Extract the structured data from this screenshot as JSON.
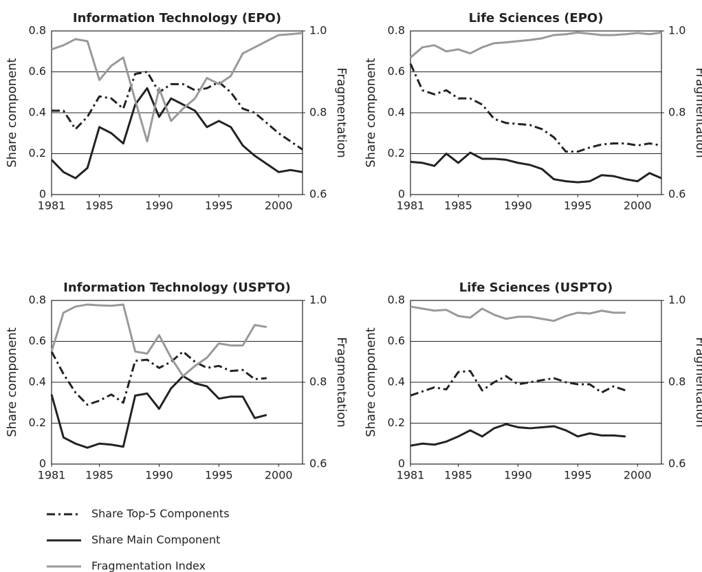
{
  "chart_data": [
    {
      "type": "line",
      "title": "Information Technology (EPO)",
      "ylabel": "Share component",
      "y2label": "Fragmentation",
      "x": [
        1981,
        1982,
        1983,
        1984,
        1985,
        1986,
        1987,
        1988,
        1989,
        1990,
        1991,
        1992,
        1993,
        1994,
        1995,
        1996,
        1997,
        1998,
        1999,
        2000,
        2001,
        2002
      ],
      "series": [
        {
          "name": "Share Top-5 Components",
          "color": "#222222",
          "linestyle": "dashdot",
          "values": [
            0.41,
            0.41,
            0.32,
            0.38,
            0.48,
            0.47,
            0.42,
            0.59,
            0.6,
            0.5,
            0.54,
            0.54,
            0.51,
            0.52,
            0.55,
            0.5,
            0.42,
            0.4,
            0.35,
            0.3,
            0.26,
            0.22
          ]
        },
        {
          "name": "Share Main Component",
          "color": "#222222",
          "linestyle": "solid",
          "values": [
            0.17,
            0.11,
            0.08,
            0.13,
            0.33,
            0.3,
            0.25,
            0.44,
            0.52,
            0.38,
            0.47,
            0.44,
            0.41,
            0.33,
            0.36,
            0.33,
            0.24,
            0.19,
            0.15,
            0.11,
            0.12,
            0.11
          ]
        },
        {
          "name": "Fragmentation Index",
          "color": "#999999",
          "linestyle": "solid",
          "axis": "y2",
          "values": [
            0.955,
            0.965,
            0.98,
            0.975,
            0.88,
            0.915,
            0.935,
            0.83,
            0.73,
            0.86,
            0.78,
            0.81,
            0.835,
            0.885,
            0.87,
            0.89,
            0.945,
            0.96,
            0.975,
            0.99,
            0.992,
            0.995
          ]
        }
      ],
      "xlim": [
        1981,
        2002
      ],
      "xticks": [
        1981,
        1985,
        1990,
        1995,
        2000
      ],
      "ylim": [
        0,
        0.8
      ],
      "yticks": [
        0,
        0.2,
        0.4,
        0.6,
        0.8
      ],
      "y2lim": [
        0.6,
        1.0
      ],
      "y2ticks": [
        0.6,
        0.8,
        {
          "value": 1.0,
          "label": "1.0"
        }
      ],
      "grid": true
    },
    {
      "type": "line",
      "title": "Life Sciences (EPO)",
      "ylabel": "Share component",
      "y2label": "Fragmentation",
      "x": [
        1981,
        1982,
        1983,
        1984,
        1985,
        1986,
        1987,
        1988,
        1989,
        1990,
        1991,
        1992,
        1993,
        1994,
        1995,
        1996,
        1997,
        1998,
        1999,
        2000,
        2001,
        2002
      ],
      "series": [
        {
          "color": "#222222",
          "linestyle": "dashdot",
          "values": [
            0.64,
            0.51,
            0.49,
            0.51,
            0.47,
            0.47,
            0.44,
            0.37,
            0.35,
            0.345,
            0.34,
            0.32,
            0.28,
            0.21,
            0.21,
            0.23,
            0.245,
            0.25,
            0.25,
            0.24,
            0.25,
            0.24
          ]
        },
        {
          "color": "#222222",
          "linestyle": "solid",
          "values": [
            0.16,
            0.155,
            0.14,
            0.2,
            0.155,
            0.205,
            0.175,
            0.175,
            0.17,
            0.155,
            0.145,
            0.125,
            0.075,
            0.065,
            0.06,
            0.065,
            0.095,
            0.09,
            0.075,
            0.065,
            0.105,
            0.08
          ]
        },
        {
          "color": "#999999",
          "linestyle": "solid",
          "axis": "y2",
          "values": [
            0.935,
            0.96,
            0.965,
            0.95,
            0.955,
            0.945,
            0.96,
            0.97,
            0.972,
            0.975,
            0.978,
            0.982,
            0.99,
            0.992,
            0.996,
            0.993,
            0.99,
            0.99,
            0.992,
            0.995,
            0.992,
            0.996
          ]
        }
      ],
      "xlim": [
        1981,
        2002
      ],
      "xticks": [
        1981,
        1985,
        1990,
        1995,
        2000
      ],
      "ylim": [
        0,
        0.8
      ],
      "yticks": [
        0,
        0.2,
        0.4,
        0.6,
        0.8
      ],
      "y2lim": [
        0.6,
        1.0
      ],
      "y2ticks": [
        0.6,
        0.8,
        {
          "value": 1.0,
          "label": "1.0"
        }
      ],
      "grid": true
    },
    {
      "type": "line",
      "title": "Information Technology (USPTO)",
      "ylabel": "Share component",
      "y2label": "Fragmentation",
      "x": [
        1981,
        1982,
        1983,
        1984,
        1985,
        1986,
        1987,
        1988,
        1989,
        1990,
        1991,
        1992,
        1993,
        1994,
        1995,
        1996,
        1997,
        1998,
        1999
      ],
      "series": [
        {
          "color": "#222222",
          "linestyle": "dashdot",
          "values": [
            0.55,
            0.44,
            0.35,
            0.29,
            0.31,
            0.34,
            0.3,
            0.505,
            0.51,
            0.47,
            0.5,
            0.55,
            0.5,
            0.47,
            0.48,
            0.455,
            0.46,
            0.415,
            0.42
          ]
        },
        {
          "color": "#222222",
          "linestyle": "solid",
          "values": [
            0.34,
            0.13,
            0.1,
            0.08,
            0.1,
            0.095,
            0.085,
            0.335,
            0.345,
            0.27,
            0.37,
            0.43,
            0.395,
            0.38,
            0.32,
            0.33,
            0.33,
            0.225,
            0.24
          ]
        },
        {
          "color": "#999999",
          "linestyle": "solid",
          "axis": "y2",
          "values": [
            0.875,
            0.97,
            0.985,
            0.99,
            0.988,
            0.987,
            0.99,
            0.875,
            0.87,
            0.915,
            0.86,
            0.815,
            0.84,
            0.86,
            0.895,
            0.89,
            0.89,
            0.94,
            0.935
          ]
        }
      ],
      "xlim": [
        1981,
        2002
      ],
      "xticks": [
        1981,
        1985,
        1990,
        1995,
        2000
      ],
      "ylim": [
        0,
        0.8
      ],
      "yticks": [
        0,
        0.2,
        0.4,
        0.6,
        0.8
      ],
      "y2lim": [
        0.6,
        1.0
      ],
      "y2ticks": [
        0.6,
        0.8,
        {
          "value": 1.0,
          "label": "1.0"
        }
      ],
      "grid": true
    },
    {
      "type": "line",
      "title": "Life Sciences (USPTO)",
      "ylabel": "Share component",
      "y2label": "Fragmentation",
      "x": [
        1981,
        1982,
        1983,
        1984,
        1985,
        1986,
        1987,
        1988,
        1989,
        1990,
        1991,
        1992,
        1993,
        1994,
        1995,
        1996,
        1997,
        1998,
        1999
      ],
      "series": [
        {
          "color": "#222222",
          "linestyle": "dashdot",
          "values": [
            0.335,
            0.355,
            0.375,
            0.365,
            0.45,
            0.455,
            0.36,
            0.4,
            0.43,
            0.39,
            0.4,
            0.41,
            0.42,
            0.4,
            0.39,
            0.39,
            0.35,
            0.38,
            0.36
          ]
        },
        {
          "color": "#222222",
          "linestyle": "solid",
          "values": [
            0.09,
            0.1,
            0.095,
            0.11,
            0.135,
            0.165,
            0.135,
            0.175,
            0.195,
            0.18,
            0.175,
            0.18,
            0.185,
            0.165,
            0.135,
            0.15,
            0.14,
            0.14,
            0.135
          ]
        },
        {
          "color": "#999999",
          "linestyle": "solid",
          "axis": "y2",
          "values": [
            0.985,
            0.98,
            0.975,
            0.977,
            0.962,
            0.958,
            0.98,
            0.965,
            0.955,
            0.96,
            0.96,
            0.955,
            0.95,
            0.962,
            0.97,
            0.968,
            0.975,
            0.97,
            0.97
          ]
        }
      ],
      "xlim": [
        1981,
        2002
      ],
      "xticks": [
        1981,
        1985,
        1990,
        1995,
        2000
      ],
      "ylim": [
        0,
        0.8
      ],
      "yticks": [
        0,
        0.2,
        0.4,
        0.6,
        0.8
      ],
      "y2lim": [
        0.6,
        1.0
      ],
      "y2ticks": [
        0.6,
        0.8,
        {
          "value": 1.0,
          "label": "1.0"
        }
      ],
      "grid": true
    }
  ]
}
